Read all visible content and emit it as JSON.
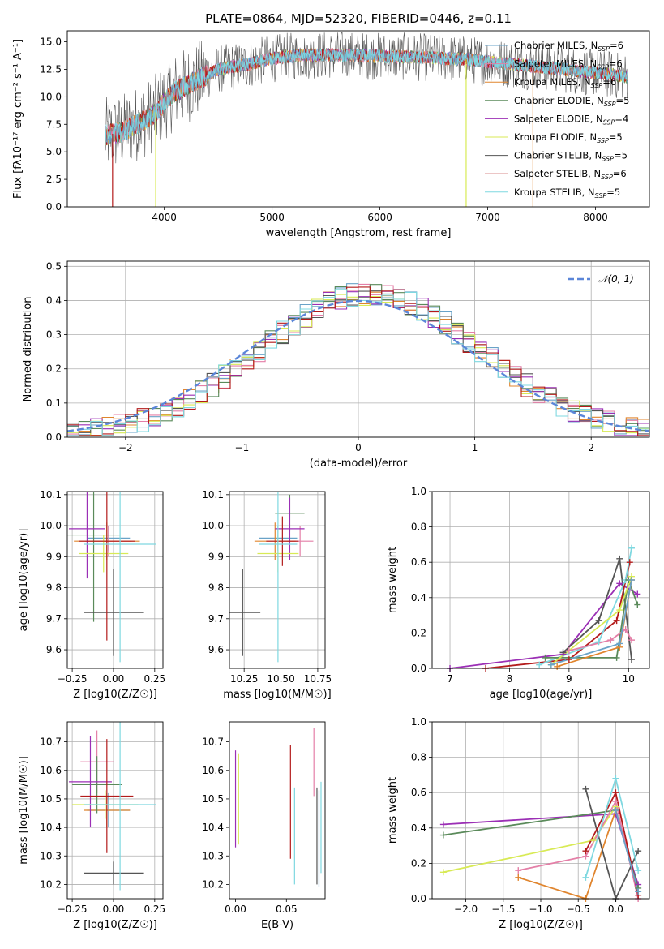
{
  "figure_title": "PLATE=0864, MJD=52320, FIBERID=0446, z=0.11",
  "colors": {
    "Chabrier MILES": "#6aa3c8",
    "Salpeter MILES": "#e47fa7",
    "Kroupa MILES": "#e0852e",
    "Chabrier ELODIE": "#5a8a5a",
    "Salpeter ELODIE": "#9b2fb5",
    "Kroupa ELODIE": "#d8ea55",
    "Chabrier STELIB": "#555555",
    "Salpeter STELIB": "#b31b1b",
    "Kroupa STELIB": "#7fd8e0",
    "normal_curve": "#5b86d8"
  },
  "chart_data": [
    {
      "type": "line",
      "name": "spectrum",
      "title": "PLATE=0864, MJD=52320, FIBERID=0446, z=0.11",
      "xlabel": "wavelength [Angstrom, rest frame]",
      "ylabel": "Flux [fλ10⁻¹⁷ erg cm⁻² s⁻¹ A⁻¹]",
      "xlim": [
        3100,
        8500
      ],
      "ylim": [
        0,
        16
      ],
      "xticks": [
        4000,
        5000,
        6000,
        7000,
        8000
      ],
      "yticks": [
        0.0,
        2.5,
        5.0,
        7.5,
        10.0,
        12.5,
        15.0
      ],
      "ytick_labels": [
        "0.0",
        "2.5",
        "5.0",
        "7.5",
        "10.0",
        "12.5",
        "15.0"
      ],
      "legend_position": "right",
      "legend": [
        {
          "label": "Chabrier MILES, N",
          "sub": "SSP",
          "suffix": "=6",
          "color_key": "Chabrier MILES"
        },
        {
          "label": "Salpeter MILES, N",
          "sub": "SSP",
          "suffix": "=6",
          "color_key": "Salpeter MILES"
        },
        {
          "label": "Kroupa MILES, N",
          "sub": "SSP",
          "suffix": "=6",
          "color_key": "Kroupa MILES"
        },
        {
          "label": "Chabrier ELODIE, N",
          "sub": "SSP",
          "suffix": "=5",
          "color_key": "Chabrier ELODIE"
        },
        {
          "label": "Salpeter ELODIE, N",
          "sub": "SSP",
          "suffix": "=4",
          "color_key": "Salpeter ELODIE"
        },
        {
          "label": "Kroupa ELODIE, N",
          "sub": "SSP",
          "suffix": "=5",
          "color_key": "Kroupa ELODIE"
        },
        {
          "label": "Chabrier STELIB, N",
          "sub": "SSP",
          "suffix": "=5",
          "color_key": "Chabrier STELIB"
        },
        {
          "label": "Salpeter STELIB, N",
          "sub": "SSP",
          "suffix": "=6",
          "color_key": "Salpeter STELIB"
        },
        {
          "label": "Kroupa STELIB, N",
          "sub": "SSP",
          "suffix": "=5",
          "color_key": "Kroupa STELIB"
        }
      ],
      "continuum_x": [
        3450,
        3600,
        3800,
        3900,
        4000,
        4100,
        4300,
        4500,
        4800,
        5000,
        5300,
        5600,
        6000,
        6400,
        6800,
        7200,
        7600,
        8000,
        8300
      ],
      "continuum_y": [
        6.5,
        6.8,
        7.8,
        8.4,
        9.5,
        10.5,
        11.5,
        12.5,
        13.0,
        13.5,
        13.8,
        13.8,
        13.7,
        13.6,
        13.4,
        13.0,
        12.6,
        12.2,
        11.8
      ],
      "spikes": [
        {
          "x": 3520,
          "y": 0,
          "color_key": "Salpeter STELIB"
        },
        {
          "x": 3920,
          "y": 0,
          "color_key": "Kroupa ELODIE"
        },
        {
          "x": 6800,
          "y": 0,
          "color_key": "Kroupa ELODIE"
        },
        {
          "x": 7420,
          "y": 0,
          "color_key": "Kroupa MILES"
        }
      ]
    },
    {
      "type": "line",
      "name": "residuals",
      "xlabel": "(data-model)/error",
      "ylabel": "Normed distribution",
      "xlim": [
        -2.5,
        2.5
      ],
      "ylim": [
        0,
        0.515
      ],
      "xticks": [
        -2,
        -1,
        0,
        1,
        2
      ],
      "xtick_labels": [
        "−2",
        "−1",
        "0",
        "1",
        "2"
      ],
      "yticks": [
        0.0,
        0.1,
        0.2,
        0.3,
        0.4,
        0.5
      ],
      "ytick_labels": [
        "0.0",
        "0.1",
        "0.2",
        "0.3",
        "0.4",
        "0.5"
      ],
      "grid": true,
      "legend_position": "top-right",
      "legend_label": "𝒩(0, 1)",
      "bin_edges_start": -2.5,
      "bin_width": 0.1,
      "hist_center": 0.1,
      "hist_sigma": 0.95,
      "normal_curve": {
        "mean": 0,
        "sigma": 1
      }
    },
    {
      "type": "scatter",
      "name": "age-vs-Z",
      "xlabel": "Z [log10(Z/Z☉)]",
      "ylabel": "age  [log10(age/yr)]",
      "xlim": [
        -0.28,
        0.3
      ],
      "ylim": [
        9.54,
        10.11
      ],
      "xticks": [
        -0.25,
        0.0,
        0.25
      ],
      "xtick_labels": [
        "−0.25",
        "0.00",
        "0.25"
      ],
      "yticks": [
        9.6,
        9.7,
        9.8,
        9.9,
        10.0,
        10.1
      ],
      "ytick_labels": [
        "9.6",
        "9.7",
        "9.8",
        "9.9",
        "10.0",
        "10.1"
      ],
      "grid": true,
      "points": [
        {
          "x": -0.03,
          "xerr": 0.13,
          "y": 9.96,
          "yerr": 0.04,
          "color_key": "Chabrier MILES"
        },
        {
          "x": -0.03,
          "xerr": 0.14,
          "y": 9.95,
          "yerr": 0.05,
          "color_key": "Salpeter MILES"
        },
        {
          "x": -0.04,
          "xerr": 0.2,
          "y": 9.95,
          "yerr": 0.06,
          "color_key": "Kroupa MILES"
        },
        {
          "x": -0.12,
          "xerr": 0.16,
          "y": 9.97,
          "yerr": 0.28,
          "color_key": "Chabrier ELODIE"
        },
        {
          "x": -0.16,
          "xerr": 0.11,
          "y": 9.99,
          "yerr": 0.16,
          "color_key": "Salpeter ELODIE"
        },
        {
          "x": -0.06,
          "xerr": 0.15,
          "y": 9.91,
          "yerr": 0.06,
          "color_key": "Kroupa ELODIE"
        },
        {
          "x": 0.0,
          "xerr": 0.18,
          "y": 9.72,
          "yerr": 0.14,
          "color_key": "Chabrier STELIB"
        },
        {
          "x": -0.04,
          "xerr": 0.17,
          "y": 9.95,
          "yerr": 0.32,
          "color_key": "Salpeter STELIB"
        },
        {
          "x": 0.04,
          "xerr": 0.22,
          "y": 9.94,
          "yerr": 0.38,
          "color_key": "Kroupa STELIB"
        }
      ]
    },
    {
      "type": "scatter",
      "name": "age-vs-mass",
      "xlabel": "mass [log10(M/M☉)]",
      "ylabel": "",
      "xlim": [
        10.15,
        10.8
      ],
      "ylim": [
        9.54,
        10.11
      ],
      "xticks": [
        10.25,
        10.5,
        10.75
      ],
      "xtick_labels": [
        "10.25",
        "10.50",
        "10.75"
      ],
      "yticks": [
        9.6,
        9.7,
        9.8,
        9.9,
        10.0,
        10.1
      ],
      "ytick_labels": [
        "9.6",
        "9.7",
        "9.8",
        "9.9",
        "10.0",
        "10.1"
      ],
      "grid": true,
      "points": [
        {
          "x": 10.48,
          "xerr": 0.13,
          "y": 9.96,
          "yerr": 0.04,
          "color_key": "Chabrier MILES"
        },
        {
          "x": 10.63,
          "xerr": 0.09,
          "y": 9.95,
          "yerr": 0.05,
          "color_key": "Salpeter MILES"
        },
        {
          "x": 10.46,
          "xerr": 0.14,
          "y": 9.95,
          "yerr": 0.06,
          "color_key": "Kroupa MILES"
        },
        {
          "x": 10.56,
          "xerr": 0.1,
          "y": 10.04,
          "yerr": 0.06,
          "color_key": "Chabrier ELODIE"
        },
        {
          "x": 10.56,
          "xerr": 0.1,
          "y": 9.99,
          "yerr": 0.1,
          "color_key": "Salpeter ELODIE"
        },
        {
          "x": 10.48,
          "xerr": 0.14,
          "y": 9.91,
          "yerr": 0.06,
          "color_key": "Kroupa ELODIE"
        },
        {
          "x": 10.24,
          "xerr": 0.12,
          "y": 9.72,
          "yerr": 0.14,
          "color_key": "Chabrier STELIB"
        },
        {
          "x": 10.51,
          "xerr": 0.11,
          "y": 9.95,
          "yerr": 0.08,
          "color_key": "Salpeter STELIB"
        },
        {
          "x": 10.48,
          "xerr": 0.13,
          "y": 9.94,
          "yerr": 0.38,
          "color_key": "Kroupa STELIB"
        }
      ]
    },
    {
      "type": "line",
      "name": "weight-vs-age",
      "xlabel": "age  [log10(age/yr)]",
      "ylabel": "mass weight",
      "xlim": [
        6.7,
        10.35
      ],
      "ylim": [
        0,
        1.0
      ],
      "xticks": [
        7,
        8,
        9,
        10
      ],
      "yticks": [
        0.0,
        0.2,
        0.4,
        0.6,
        0.8,
        1.0
      ],
      "ytick_labels": [
        "0.0",
        "0.2",
        "0.4",
        "0.6",
        "0.8",
        "1.0"
      ],
      "grid": true,
      "series": [
        {
          "color_key": "Salpeter ELODIE",
          "x": [
            7.0,
            8.9,
            9.85,
            10.15
          ],
          "y": [
            0.0,
            0.08,
            0.48,
            0.42
          ]
        },
        {
          "color_key": "Chabrier STELIB",
          "x": [
            8.9,
            9.5,
            9.85,
            10.05
          ],
          "y": [
            0.09,
            0.27,
            0.62,
            0.05
          ]
        },
        {
          "color_key": "Salpeter STELIB",
          "x": [
            7.6,
            9.0,
            9.8,
            10.02
          ],
          "y": [
            0.0,
            0.05,
            0.27,
            0.6
          ]
        },
        {
          "color_key": "Kroupa STELIB",
          "x": [
            8.5,
            9.5,
            9.95,
            10.05
          ],
          "y": [
            0.02,
            0.15,
            0.5,
            0.68
          ]
        },
        {
          "color_key": "Chabrier ELODIE",
          "x": [
            8.6,
            9.8,
            10.0,
            10.15
          ],
          "y": [
            0.06,
            0.06,
            0.5,
            0.36
          ]
        },
        {
          "color_key": "Kroupa ELODIE",
          "x": [
            8.7,
            9.85,
            10.05
          ],
          "y": [
            0.02,
            0.33,
            0.52
          ]
        },
        {
          "color_key": "Salpeter MILES",
          "x": [
            9.0,
            9.7,
            9.95,
            10.05
          ],
          "y": [
            0.1,
            0.16,
            0.22,
            0.16
          ]
        },
        {
          "color_key": "Kroupa MILES",
          "x": [
            8.8,
            9.85,
            10.05
          ],
          "y": [
            0.01,
            0.12,
            0.5
          ]
        },
        {
          "color_key": "Chabrier MILES",
          "x": [
            8.7,
            9.85,
            10.05
          ],
          "y": [
            0.02,
            0.14,
            0.5
          ]
        }
      ]
    },
    {
      "type": "scatter",
      "name": "mass-vs-Z",
      "xlabel": "Z [log10(Z/Z☉)]",
      "ylabel": "mass [log10(M/M☉)]",
      "xlim": [
        -0.28,
        0.3
      ],
      "ylim": [
        10.15,
        10.77
      ],
      "xticks": [
        -0.25,
        0.0,
        0.25
      ],
      "xtick_labels": [
        "−0.25",
        "0.00",
        "0.25"
      ],
      "yticks": [
        10.2,
        10.3,
        10.4,
        10.5,
        10.6,
        10.7
      ],
      "ytick_labels": [
        "10.2",
        "10.3",
        "10.4",
        "10.5",
        "10.6",
        "10.7"
      ],
      "grid": true,
      "points": [
        {
          "x": -0.03,
          "xerr": 0.13,
          "y": 10.46,
          "yerr": 0.06,
          "color_key": "Chabrier MILES"
        },
        {
          "x": -0.1,
          "xerr": 0.1,
          "y": 10.63,
          "yerr": 0.11,
          "color_key": "Salpeter MILES"
        },
        {
          "x": -0.04,
          "xerr": 0.14,
          "y": 10.46,
          "yerr": 0.06,
          "color_key": "Kroupa MILES"
        },
        {
          "x": -0.1,
          "xerr": 0.15,
          "y": 10.55,
          "yerr": 0.1,
          "color_key": "Chabrier ELODIE"
        },
        {
          "x": -0.14,
          "xerr": 0.13,
          "y": 10.56,
          "yerr": 0.16,
          "color_key": "Salpeter ELODIE"
        },
        {
          "x": -0.05,
          "xerr": 0.2,
          "y": 10.48,
          "yerr": 0.05,
          "color_key": "Kroupa ELODIE"
        },
        {
          "x": 0.0,
          "xerr": 0.18,
          "y": 10.24,
          "yerr": 0.04,
          "color_key": "Chabrier STELIB"
        },
        {
          "x": -0.04,
          "xerr": 0.16,
          "y": 10.51,
          "yerr": 0.2,
          "color_key": "Salpeter STELIB"
        },
        {
          "x": 0.04,
          "xerr": 0.22,
          "y": 10.48,
          "yerr": 0.3,
          "color_key": "Kroupa STELIB"
        }
      ]
    },
    {
      "type": "scatter",
      "name": "mass-vs-EBV",
      "xlabel": "E(B-V)",
      "ylabel": "",
      "xlim": [
        -0.006,
        0.088
      ],
      "ylim": [
        10.15,
        10.77
      ],
      "xticks": [
        0.0,
        0.05
      ],
      "xtick_labels": [
        "0.00",
        "0.05"
      ],
      "yticks": [
        10.2,
        10.3,
        10.4,
        10.5,
        10.6,
        10.7
      ],
      "ytick_labels": [
        "10.2",
        "10.3",
        "10.4",
        "10.5",
        "10.6",
        "10.7"
      ],
      "grid": false,
      "points": [
        {
          "x": 0.0,
          "y": 10.5,
          "yerr": 0.17,
          "color_key": "Salpeter ELODIE"
        },
        {
          "x": 0.003,
          "y": 10.5,
          "yerr": 0.16,
          "color_key": "Kroupa ELODIE"
        },
        {
          "x": 0.054,
          "y": 10.49,
          "yerr": 0.2,
          "color_key": "Salpeter STELIB"
        },
        {
          "x": 0.058,
          "y": 10.37,
          "yerr": 0.17,
          "color_key": "Kroupa STELIB"
        },
        {
          "x": 0.077,
          "y": 10.63,
          "yerr": 0.12,
          "color_key": "Salpeter MILES"
        },
        {
          "x": 0.08,
          "y": 10.37,
          "yerr": 0.17,
          "color_key": "Chabrier STELIB"
        },
        {
          "x": 0.082,
          "y": 10.36,
          "yerr": 0.17,
          "color_key": "Chabrier MILES"
        },
        {
          "x": 0.084,
          "y": 10.4,
          "yerr": 0.16,
          "color_key": "Kroupa STELIB"
        }
      ]
    },
    {
      "type": "line",
      "name": "weight-vs-Z",
      "xlabel": "Z [log10(Z/Z☉)]",
      "ylabel": "mass weight",
      "xlim": [
        -2.45,
        0.45
      ],
      "ylim": [
        0,
        1.0
      ],
      "xticks": [
        -2.0,
        -1.5,
        -1.0,
        -0.5,
        0.0
      ],
      "xtick_labels": [
        "−2.0",
        "−1.5",
        "−1.0",
        "−0.5",
        "0.0"
      ],
      "yticks": [
        0.0,
        0.2,
        0.4,
        0.6,
        0.8,
        1.0
      ],
      "ytick_labels": [
        "0.0",
        "0.2",
        "0.4",
        "0.6",
        "0.8",
        "1.0"
      ],
      "grid": true,
      "series": [
        {
          "color_key": "Salpeter ELODIE",
          "x": [
            -2.3,
            0.0,
            0.3
          ],
          "y": [
            0.42,
            0.48,
            0.08
          ]
        },
        {
          "color_key": "Chabrier ELODIE",
          "x": [
            -2.3,
            0.0,
            0.3
          ],
          "y": [
            0.36,
            0.5,
            0.06
          ]
        },
        {
          "color_key": "Kroupa ELODIE",
          "x": [
            -2.3,
            -0.3,
            0.0
          ],
          "y": [
            0.15,
            0.33,
            0.52
          ]
        },
        {
          "color_key": "Salpeter MILES",
          "x": [
            -1.3,
            -0.4,
            0.0,
            0.3
          ],
          "y": [
            0.16,
            0.24,
            0.55,
            0.0
          ]
        },
        {
          "color_key": "Kroupa MILES",
          "x": [
            -1.3,
            -0.4,
            0.0
          ],
          "y": [
            0.12,
            0.0,
            0.5
          ]
        },
        {
          "color_key": "Chabrier STELIB",
          "x": [
            -0.4,
            0.0,
            0.3
          ],
          "y": [
            0.62,
            0.0,
            0.27
          ]
        },
        {
          "color_key": "Salpeter STELIB",
          "x": [
            -0.4,
            0.0,
            0.3
          ],
          "y": [
            0.27,
            0.6,
            0.02
          ]
        },
        {
          "color_key": "Kroupa STELIB",
          "x": [
            -0.4,
            0.0,
            0.3
          ],
          "y": [
            0.12,
            0.68,
            0.16
          ]
        },
        {
          "color_key": "Chabrier MILES",
          "x": [
            0.0,
            0.3
          ],
          "y": [
            0.5,
            0.04
          ]
        }
      ]
    }
  ]
}
